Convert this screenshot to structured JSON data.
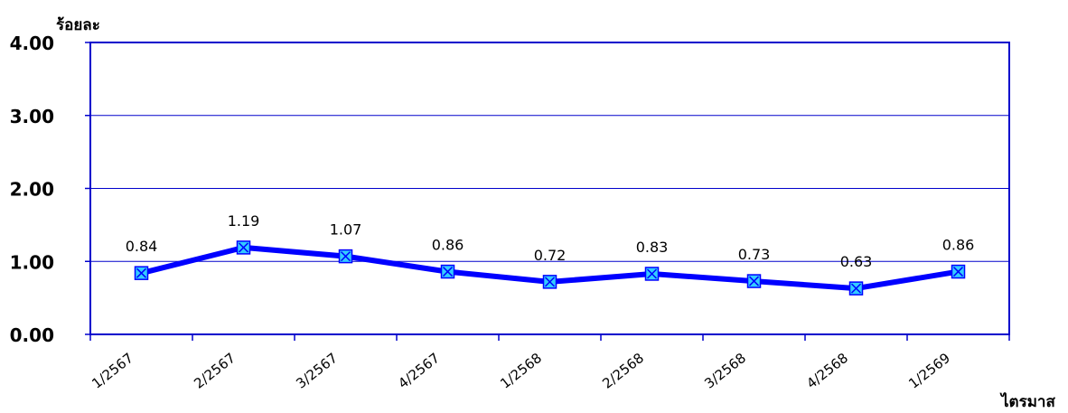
{
  "chart_data": {
    "type": "line",
    "title": "",
    "ylabel": "ร้อยละ",
    "xlabel": "ไตรมาส",
    "categories": [
      "1/2567",
      "2/2567",
      "3/2567",
      "4/2567",
      "1/2568",
      "2/2568",
      "3/2568",
      "4/2568",
      "1/2569"
    ],
    "series": [
      {
        "values": [
          0.84,
          1.19,
          1.07,
          0.86,
          0.72,
          0.83,
          0.73,
          0.63,
          0.86
        ]
      }
    ],
    "data_labels": [
      "0.84",
      "1.19",
      "1.07",
      "0.86",
      "0.72",
      "0.83",
      "0.73",
      "0.63",
      "0.86"
    ],
    "ylim": [
      0,
      4
    ],
    "yticks": [
      "0.00",
      "1.00",
      "2.00",
      "3.00",
      "4.00"
    ],
    "grid": true,
    "legend": "none",
    "colors": {
      "line": "#0000ff",
      "marker": "#33ccff",
      "axis": "#0000cc",
      "grid": "#0000cc"
    }
  }
}
